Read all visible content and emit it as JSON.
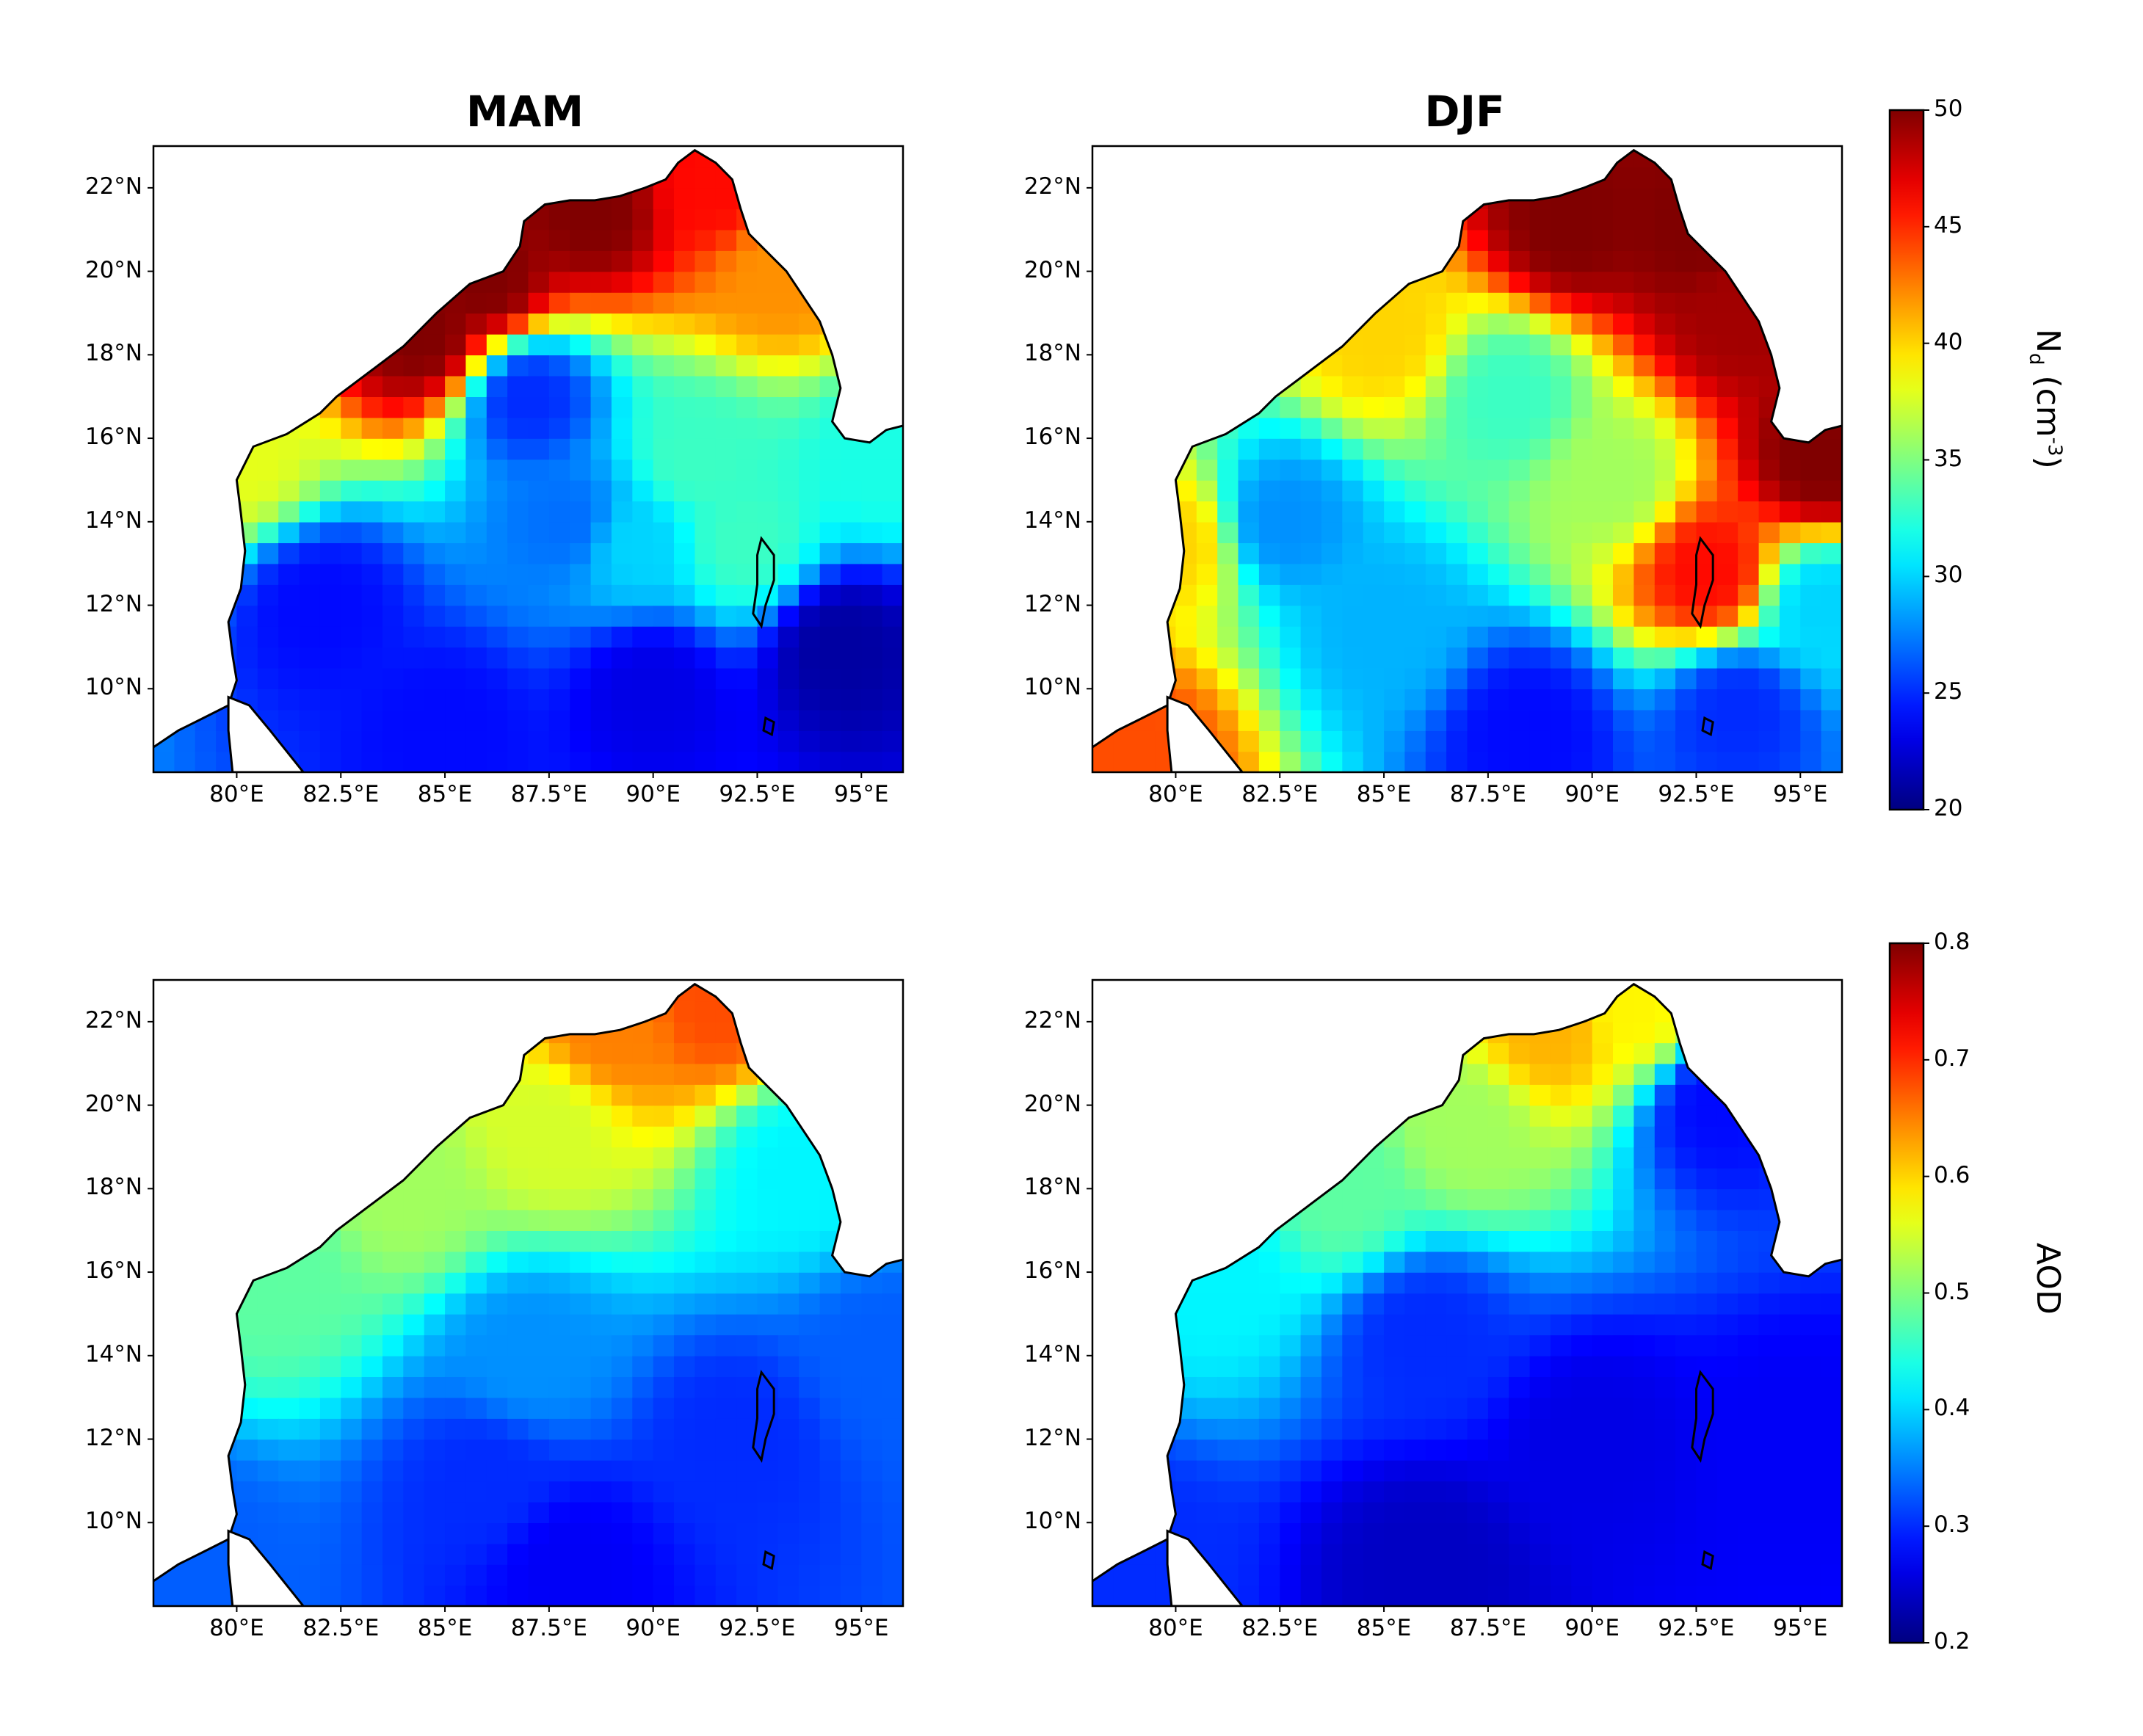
{
  "figure": {
    "panel_titles": [
      "MAM",
      "DJF"
    ]
  },
  "chart_data": [
    {
      "type": "heatmap",
      "title": "MAM",
      "variable": "Nd",
      "xlabel": "",
      "ylabel": "",
      "x_ticks": [
        "80°E",
        "82.5°E",
        "85°E",
        "87.5°E",
        "90°E",
        "92.5°E",
        "95°E"
      ],
      "y_ticks": [
        "22°N",
        "20°N",
        "18°N",
        "16°N",
        "14°N",
        "12°N",
        "10°N"
      ],
      "xlim": [
        78,
        96
      ],
      "ylim": [
        8,
        23
      ],
      "colorscale": "jet",
      "vmin": 20,
      "vmax": 50,
      "features": [
        {
          "lon": 80.0,
          "lat": 15.5,
          "value": 38
        },
        {
          "lon": 86.0,
          "lat": 19.8,
          "value": 50
        },
        {
          "lon": 84.5,
          "lat": 18.5,
          "value": 50
        },
        {
          "lon": 88.5,
          "lat": 21.5,
          "value": 50
        },
        {
          "lon": 91.5,
          "lat": 22.0,
          "value": 46
        },
        {
          "lon": 93.0,
          "lat": 20.0,
          "value": 42
        },
        {
          "lon": 87.0,
          "lat": 17.0,
          "value": 25
        },
        {
          "lon": 88.0,
          "lat": 14.0,
          "value": 27
        },
        {
          "lon": 89.5,
          "lat": 13.5,
          "value": 30
        },
        {
          "lon": 91.0,
          "lat": 15.5,
          "value": 33
        },
        {
          "lon": 92.2,
          "lat": 13.5,
          "value": 33
        },
        {
          "lon": 82.0,
          "lat": 12.0,
          "value": 24
        },
        {
          "lon": 90.0,
          "lat": 10.0,
          "value": 23
        },
        {
          "lon": 94.5,
          "lat": 11.0,
          "value": 21
        },
        {
          "lon": 85.0,
          "lat": 9.0,
          "value": 24
        },
        {
          "lon": 95.5,
          "lat": 15.5,
          "value": 32
        }
      ]
    },
    {
      "type": "heatmap",
      "title": "DJF",
      "variable": "Nd",
      "xlabel": "",
      "ylabel": "",
      "x_ticks": [
        "80°E",
        "82.5°E",
        "85°E",
        "87.5°E",
        "90°E",
        "92.5°E",
        "95°E"
      ],
      "y_ticks": [
        "22°N",
        "20°N",
        "18°N",
        "16°N",
        "14°N",
        "12°N",
        "10°N"
      ],
      "xlim": [
        78,
        96
      ],
      "ylim": [
        8,
        23
      ],
      "colorscale": "jet",
      "vmin": 20,
      "vmax": 50,
      "features": [
        {
          "lon": 89.5,
          "lat": 21.2,
          "value": 50
        },
        {
          "lon": 92.5,
          "lat": 21.0,
          "value": 50
        },
        {
          "lon": 93.5,
          "lat": 19.0,
          "value": 49
        },
        {
          "lon": 95.5,
          "lat": 15.5,
          "value": 50
        },
        {
          "lon": 92.8,
          "lat": 12.8,
          "value": 46
        },
        {
          "lon": 79.0,
          "lat": 8.5,
          "value": 44
        },
        {
          "lon": 80.0,
          "lat": 13.5,
          "value": 40
        },
        {
          "lon": 85.0,
          "lat": 18.5,
          "value": 40
        },
        {
          "lon": 88.0,
          "lat": 17.0,
          "value": 33
        },
        {
          "lon": 90.5,
          "lat": 15.0,
          "value": 36
        },
        {
          "lon": 82.5,
          "lat": 14.0,
          "value": 28
        },
        {
          "lon": 85.0,
          "lat": 11.5,
          "value": 29
        },
        {
          "lon": 88.5,
          "lat": 9.0,
          "value": 24
        },
        {
          "lon": 93.5,
          "lat": 9.5,
          "value": 25
        },
        {
          "lon": 95.5,
          "lat": 12.0,
          "value": 30
        }
      ]
    },
    {
      "type": "heatmap",
      "title": "",
      "variable": "AOD",
      "xlabel": "",
      "ylabel": "",
      "x_ticks": [
        "80°E",
        "82.5°E",
        "85°E",
        "87.5°E",
        "90°E",
        "92.5°E",
        "95°E"
      ],
      "y_ticks": [
        "22°N",
        "20°N",
        "18°N",
        "16°N",
        "14°N",
        "12°N",
        "10°N"
      ],
      "xlim": [
        78,
        96
      ],
      "ylim": [
        8,
        23
      ],
      "colorscale": "jet",
      "vmin": 0.2,
      "vmax": 0.8,
      "features": [
        {
          "lon": 89.0,
          "lat": 21.8,
          "value": 0.65
        },
        {
          "lon": 91.5,
          "lat": 22.5,
          "value": 0.68
        },
        {
          "lon": 87.5,
          "lat": 19.5,
          "value": 0.55
        },
        {
          "lon": 84.0,
          "lat": 18.0,
          "value": 0.52
        },
        {
          "lon": 81.0,
          "lat": 16.0,
          "value": 0.48
        },
        {
          "lon": 93.5,
          "lat": 18.5,
          "value": 0.42
        },
        {
          "lon": 87.0,
          "lat": 14.0,
          "value": 0.36
        },
        {
          "lon": 86.0,
          "lat": 11.0,
          "value": 0.3
        },
        {
          "lon": 92.0,
          "lat": 12.0,
          "value": 0.3
        },
        {
          "lon": 88.0,
          "lat": 9.0,
          "value": 0.27
        },
        {
          "lon": 79.0,
          "lat": 9.0,
          "value": 0.33
        },
        {
          "lon": 95.5,
          "lat": 14.0,
          "value": 0.33
        }
      ]
    },
    {
      "type": "heatmap",
      "title": "",
      "variable": "AOD",
      "xlabel": "",
      "ylabel": "",
      "x_ticks": [
        "80°E",
        "82.5°E",
        "85°E",
        "87.5°E",
        "90°E",
        "92.5°E",
        "95°E"
      ],
      "y_ticks": [
        "22°N",
        "20°N",
        "18°N",
        "16°N",
        "14°N",
        "12°N",
        "10°N"
      ],
      "xlim": [
        78,
        96
      ],
      "ylim": [
        8,
        23
      ],
      "colorscale": "jet",
      "vmin": 0.2,
      "vmax": 0.8,
      "features": [
        {
          "lon": 89.0,
          "lat": 21.8,
          "value": 0.62
        },
        {
          "lon": 91.0,
          "lat": 22.3,
          "value": 0.58
        },
        {
          "lon": 87.0,
          "lat": 19.5,
          "value": 0.52
        },
        {
          "lon": 84.0,
          "lat": 18.0,
          "value": 0.48
        },
        {
          "lon": 81.0,
          "lat": 16.0,
          "value": 0.42
        },
        {
          "lon": 93.0,
          "lat": 20.0,
          "value": 0.28
        },
        {
          "lon": 86.0,
          "lat": 14.5,
          "value": 0.3
        },
        {
          "lon": 90.0,
          "lat": 12.0,
          "value": 0.26
        },
        {
          "lon": 86.0,
          "lat": 9.0,
          "value": 0.24
        },
        {
          "lon": 95.0,
          "lat": 12.0,
          "value": 0.27
        },
        {
          "lon": 79.0,
          "lat": 9.0,
          "value": 0.3
        }
      ]
    }
  ],
  "colorbars": [
    {
      "variable": "Nd",
      "label_main": "N",
      "label_sub": "d",
      "label_unit_open": " (cm",
      "label_sup": "-3",
      "label_unit_close": ")",
      "ticks": [
        "50",
        "45",
        "40",
        "35",
        "30",
        "25",
        "20"
      ],
      "min": 20,
      "max": 50
    },
    {
      "variable": "AOD",
      "label": "AOD",
      "ticks": [
        "0.8",
        "0.7",
        "0.6",
        "0.5",
        "0.4",
        "0.3",
        "0.2"
      ],
      "min": 0.2,
      "max": 0.8
    }
  ],
  "colors": {
    "coastline": "#000000",
    "missing": "#ffffff"
  }
}
